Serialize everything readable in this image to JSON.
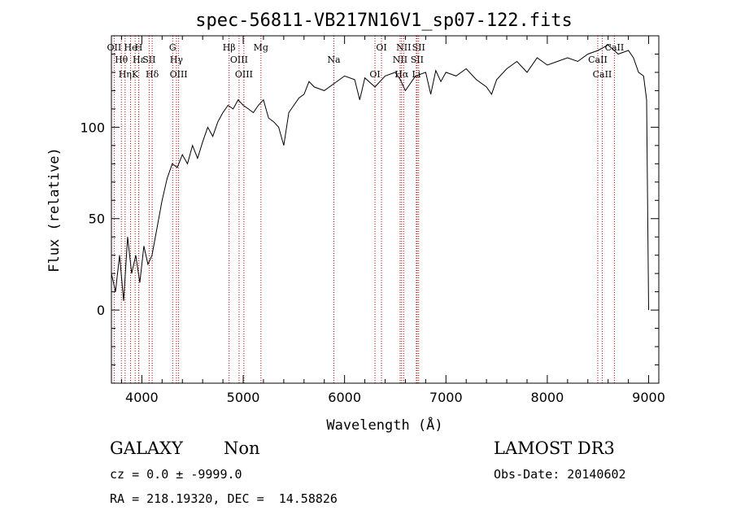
{
  "chart_data": {
    "type": "line",
    "title": "spec-56811-VB217N16V1_sp07-122.fits",
    "xlabel": "Wavelength (Å)",
    "ylabel": "Flux (relative)",
    "xlim": [
      3700,
      9100
    ],
    "ylim": [
      -40,
      150
    ],
    "xticks": [
      4000,
      5000,
      6000,
      7000,
      8000,
      9000
    ],
    "yticks": [
      0,
      50,
      100
    ],
    "line_color": "#000000",
    "marker_color": "#c00000",
    "series": [
      {
        "x": [
          3700,
          3740,
          3780,
          3820,
          3860,
          3900,
          3940,
          3980,
          4020,
          4060,
          4100,
          4150,
          4200,
          4250,
          4300,
          4350,
          4400,
          4450,
          4500,
          4550,
          4600,
          4650,
          4700,
          4750,
          4800,
          4850,
          4900,
          4950,
          5000,
          5050,
          5100,
          5150,
          5200,
          5250,
          5300,
          5350,
          5400,
          5450,
          5500,
          5550,
          5600,
          5650,
          5700,
          5800,
          5900,
          6000,
          6100,
          6150,
          6200,
          6300,
          6400,
          6500,
          6550,
          6600,
          6700,
          6800,
          6850,
          6900,
          6950,
          7000,
          7100,
          7200,
          7300,
          7400,
          7450,
          7500,
          7600,
          7700,
          7800,
          7900,
          8000,
          8100,
          8200,
          8300,
          8400,
          8500,
          8600,
          8700,
          8800,
          8850,
          8900,
          8950,
          8980,
          9000
        ],
        "y": [
          20,
          10,
          30,
          5,
          40,
          20,
          30,
          15,
          35,
          25,
          30,
          45,
          60,
          72,
          80,
          78,
          85,
          80,
          90,
          83,
          92,
          100,
          95,
          103,
          108,
          112,
          110,
          115,
          112,
          110,
          108,
          112,
          115,
          105,
          103,
          100,
          90,
          108,
          112,
          116,
          118,
          125,
          122,
          120,
          124,
          128,
          126,
          115,
          127,
          122,
          128,
          130,
          126,
          120,
          128,
          130,
          118,
          131,
          125,
          130,
          128,
          132,
          126,
          122,
          118,
          126,
          132,
          136,
          130,
          138,
          134,
          136,
          138,
          136,
          140,
          142,
          145,
          140,
          142,
          138,
          130,
          128,
          115,
          0
        ]
      }
    ],
    "lines": [
      {
        "label": "OII",
        "x": 3727
      },
      {
        "label": "Hθ",
        "x": 3798
      },
      {
        "label": "Hη",
        "x": 3835
      },
      {
        "label": "He",
        "x": 3889
      },
      {
        "label": "Hε",
        "x": 3970
      },
      {
        "label": "K",
        "x": 3934
      },
      {
        "label": "H",
        "x": 3969
      },
      {
        "label": "SII",
        "x": 4072
      },
      {
        "label": "Hδ",
        "x": 4102
      },
      {
        "label": "G",
        "x": 4304
      },
      {
        "label": "Hγ",
        "x": 4341
      },
      {
        "label": "OIII",
        "x": 4363
      },
      {
        "label": "Hβ",
        "x": 4861
      },
      {
        "label": "OIII",
        "x": 4959
      },
      {
        "label": "OIII",
        "x": 5007
      },
      {
        "label": "Mg",
        "x": 5175
      },
      {
        "label": "Na",
        "x": 5894
      },
      {
        "label": "OI",
        "x": 6300
      },
      {
        "label": "OI",
        "x": 6364
      },
      {
        "label": "NII",
        "x": 6548
      },
      {
        "label": "Hα",
        "x": 6563
      },
      {
        "label": "NII",
        "x": 6583
      },
      {
        "label": "SII",
        "x": 6716
      },
      {
        "label": "Li",
        "x": 6708
      },
      {
        "label": "SII",
        "x": 6731
      },
      {
        "label": "CaII",
        "x": 8498
      },
      {
        "label": "CaII",
        "x": 8542
      },
      {
        "label": "CaII",
        "x": 8662
      }
    ]
  },
  "info": {
    "class_label": "GALAXY",
    "subclass_label": "Non",
    "survey_label": "LAMOST DR3",
    "cz_label": "cz = 0.0 ± -9999.0",
    "obsdate_label": "Obs-Date: 20140602",
    "coords_label": "RA = 218.19320, DEC =  14.58826"
  }
}
